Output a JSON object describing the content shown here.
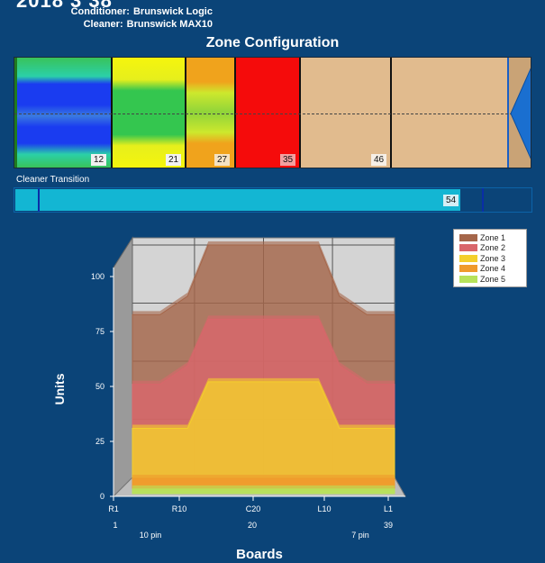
{
  "header": {
    "title_cut": "2018 3 38",
    "conditioner_label": "Conditioner:",
    "conditioner_value": "Brunswick Logic",
    "cleaner_label": "Cleaner:",
    "cleaner_value": "Brunswick MAX10"
  },
  "zone_config": {
    "title": "Zone Configuration",
    "markers": [
      "12",
      "21",
      "27",
      "35",
      "46"
    ]
  },
  "cleaner_transition": {
    "label": "Cleaner Transition",
    "value": "54",
    "fill_fraction": 0.86
  },
  "colors": {
    "background": "#0b4478",
    "zone1": "#a5664a",
    "zone2": "#d9666b",
    "zone3": "#f4cf2c",
    "zone4": "#ef9a2c",
    "zone5": "#b7e25a"
  },
  "chart_data": {
    "type": "area",
    "xlabel": "Boards",
    "ylabel": "Units",
    "ylim": [
      0,
      100
    ],
    "y_ticks": [
      "100",
      "75",
      "50",
      "25",
      "0"
    ],
    "x_ticks": [
      "R1",
      "R10",
      "C20",
      "L10",
      "L1"
    ],
    "x_sub_ticks": [
      "1",
      "20",
      "39"
    ],
    "x_pin_labels": [
      "10 pin",
      "7 pin"
    ],
    "x": [
      1,
      5,
      9,
      12,
      20,
      28,
      31,
      35,
      39
    ],
    "series": [
      {
        "name": "Zone 1",
        "values": [
          70,
          70,
          78,
          100,
          100,
          100,
          78,
          70,
          70
        ]
      },
      {
        "name": "Zone 2",
        "values": [
          42,
          42,
          50,
          70,
          70,
          70,
          50,
          42,
          42
        ]
      },
      {
        "name": "Zone 3",
        "values": [
          25,
          25,
          25,
          45,
          45,
          45,
          25,
          25,
          25
        ]
      },
      {
        "name": "Zone 4",
        "values": [
          5,
          5,
          5,
          5,
          5,
          5,
          5,
          5,
          5
        ]
      },
      {
        "name": "Zone 5",
        "values": [
          2,
          2,
          2,
          2,
          2,
          2,
          2,
          2,
          2
        ]
      }
    ],
    "legend_position": "top-right",
    "grid": true
  }
}
